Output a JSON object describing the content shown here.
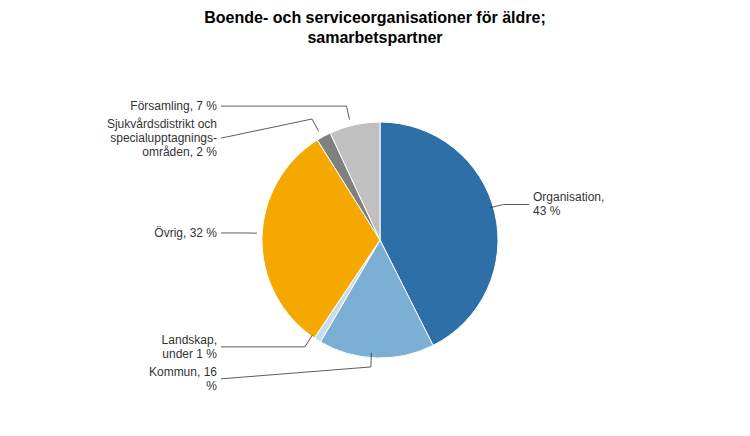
{
  "chart_data": {
    "type": "pie",
    "title": "Boende- och serviceorganisationer för äldre;\nsamarbetspartner",
    "categories": [
      "Organisation,\n43 %",
      "Kommun, 16\n%",
      "Landskap,\nunder 1 %",
      "Övrig, 32 %",
      "Sjukvårdsdistrikt och\nspecialupptagnings-\nområden, 2 %",
      "Församling, 7 %"
    ],
    "values": [
      43,
      16,
      1,
      32,
      2,
      7
    ],
    "colors": [
      "#2E6FA8",
      "#7BAFD4",
      "#C8DCF0",
      "#F5A800",
      "#808080",
      "#C0C0C0"
    ]
  }
}
